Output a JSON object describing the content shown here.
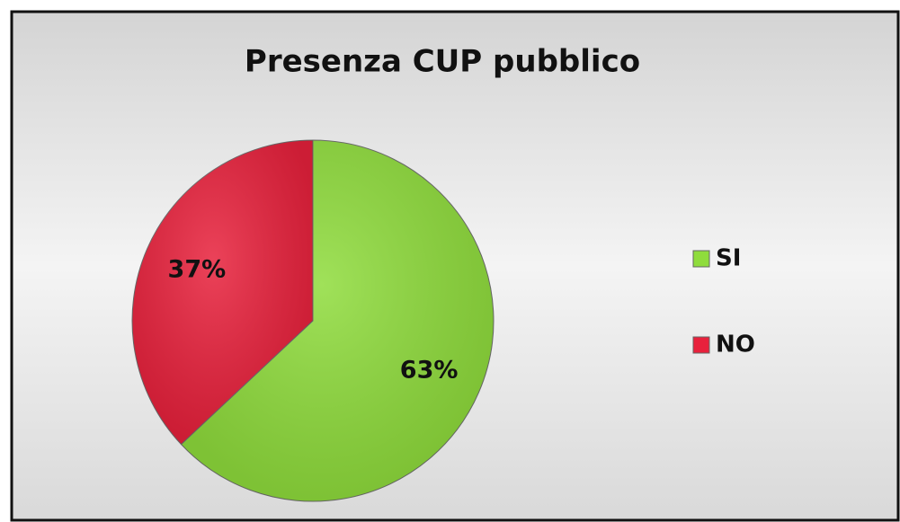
{
  "chart_data": {
    "type": "pie",
    "title": "Presenza CUP pubblico",
    "categories": [
      "SI",
      "NO"
    ],
    "values": [
      63,
      37
    ],
    "value_labels": [
      "63%",
      "37%"
    ],
    "colors": [
      "#8fdc3c",
      "#e8213c"
    ],
    "legend": "right"
  }
}
